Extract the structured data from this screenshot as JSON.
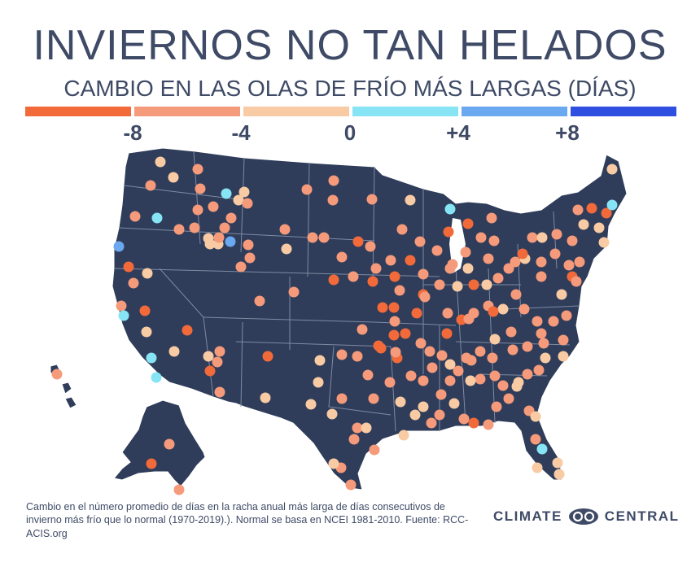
{
  "header": {
    "title": "INVIERNOS NO TAN HELADOS",
    "subtitle": "CAMBIO EN LAS OLAS DE FRÍO MÁS LARGAS (DÍAS)"
  },
  "legend": {
    "colors": [
      "#f26a3a",
      "#f59a7a",
      "#f8cba4",
      "#86e4f4",
      "#6aa8f0",
      "#2f4fe0"
    ],
    "ticks": [
      "-8",
      "-4",
      "0",
      "+4",
      "+8"
    ]
  },
  "map": {
    "land_color": "#2f3d5a",
    "border_color": "#7f8aa3",
    "station_categories": {
      "strong_decrease": "#f26a3a",
      "decrease": "#f59a7a",
      "slight_decrease": "#f8cba4",
      "slight_increase": "#86e4f4",
      "increase": "#6aa8f0",
      "strong_increase": "#2f4fe0"
    }
  },
  "footnote": "Cambio en el número promedio de días en la racha anual más larga de días consecutivos de invierno más frío que lo normal (1970-2019).). Normal se basa en NCEI 1981-2010. Fuente: RCC-ACIS.org",
  "logo": {
    "left": "CLIMATE",
    "right": "CENTRAL"
  }
}
